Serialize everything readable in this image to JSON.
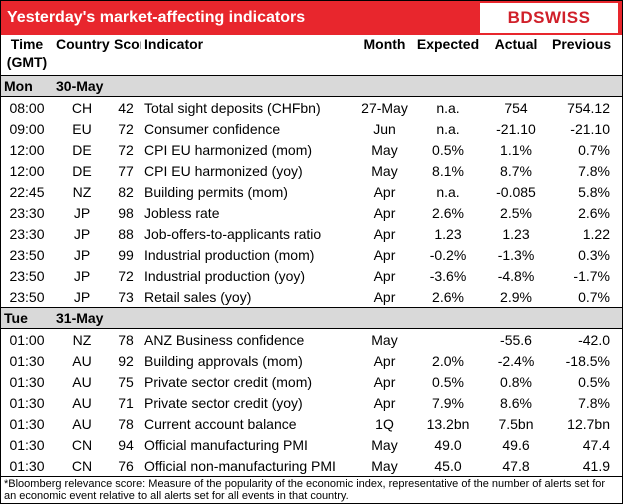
{
  "header": {
    "title": "Yesterday's market-affecting indicators",
    "logo": "BDSWISS"
  },
  "table": {
    "columns": [
      "Time (GMT)",
      "Country",
      "Score*",
      "Indicator",
      "Month",
      "Expected",
      "Actual",
      "Previous"
    ],
    "sections": [
      {
        "day": "Mon",
        "date": "30-May",
        "rows": [
          [
            "08:00",
            "CH",
            "42",
            "Total sight deposits (CHFbn)",
            "27-May",
            "n.a.",
            "754",
            "754.12"
          ],
          [
            "09:00",
            "EU",
            "72",
            "Consumer confidence",
            "Jun",
            "n.a.",
            "-21.10",
            "-21.10"
          ],
          [
            "12:00",
            "DE",
            "72",
            "CPI EU harmonized (mom)",
            "May",
            "0.5%",
            "1.1%",
            "0.7%"
          ],
          [
            "12:00",
            "DE",
            "77",
            "CPI EU harmonized (yoy)",
            "May",
            "8.1%",
            "8.7%",
            "7.8%"
          ],
          [
            "22:45",
            "NZ",
            "82",
            "Building permits (mom)",
            "Apr",
            "n.a.",
            "-0.085",
            "5.8%"
          ],
          [
            "23:30",
            "JP",
            "98",
            "Jobless rate",
            "Apr",
            "2.6%",
            "2.5%",
            "2.6%"
          ],
          [
            "23:30",
            "JP",
            "88",
            "Job-offers-to-applicants ratio",
            "Apr",
            "1.23",
            "1.23",
            "1.22"
          ],
          [
            "23:50",
            "JP",
            "99",
            "Industrial production (mom)",
            "Apr",
            "-0.2%",
            "-1.3%",
            "0.3%"
          ],
          [
            "23:50",
            "JP",
            "72",
            "Industrial production (yoy)",
            "Apr",
            "-3.6%",
            "-4.8%",
            "-1.7%"
          ],
          [
            "23:50",
            "JP",
            "73",
            "Retail sales (yoy)",
            "Apr",
            "2.6%",
            "2.9%",
            "0.7%"
          ]
        ]
      },
      {
        "day": "Tue",
        "date": "31-May",
        "rows": [
          [
            "01:00",
            "NZ",
            "78",
            "ANZ Business confidence",
            "May",
            "",
            "-55.6",
            "-42.0"
          ],
          [
            "01:30",
            "AU",
            "92",
            "Building approvals (mom)",
            "Apr",
            "2.0%",
            "-2.4%",
            "-18.5%"
          ],
          [
            "01:30",
            "AU",
            "75",
            "Private sector credit (mom)",
            "Apr",
            "0.5%",
            "0.8%",
            "0.5%"
          ],
          [
            "01:30",
            "AU",
            "71",
            "Private sector credit (yoy)",
            "Apr",
            "7.9%",
            "8.6%",
            "7.8%"
          ],
          [
            "01:30",
            "AU",
            "78",
            "Current account balance",
            "1Q",
            "13.2bn",
            "7.5bn",
            "12.7bn"
          ],
          [
            "01:30",
            "CN",
            "94",
            "Official manufacturing PMI",
            "May",
            "49.0",
            "49.6",
            "47.4"
          ],
          [
            "01:30",
            "CN",
            "76",
            "Official non-manufacturing PMI",
            "May",
            "45.0",
            "47.8",
            "41.9"
          ]
        ]
      }
    ]
  },
  "footnote": "*Bloomberg relevance score: Measure of the popularity of the economic index, representative of the number of alerts set for an economic event relative to all alerts set for all events in that country."
}
